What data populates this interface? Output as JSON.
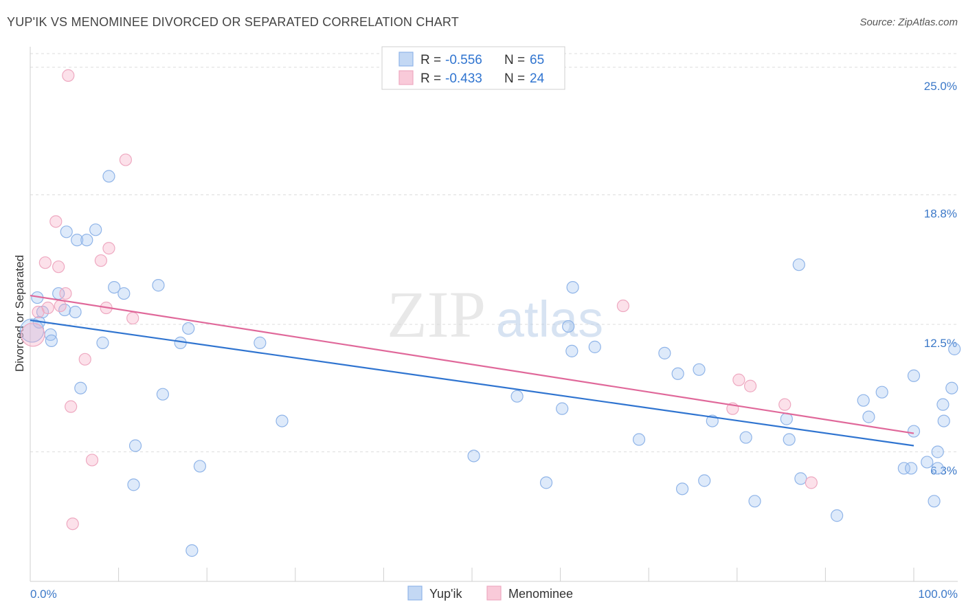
{
  "chart_data": {
    "type": "scatter",
    "title": "YUP'IK VS MENOMINEE DIVORCED OR SEPARATED CORRELATION CHART",
    "source": "Source: ZipAtlas.com",
    "ylabel": "Divorced or Separated",
    "xlabel": "",
    "xlim": [
      0,
      100
    ],
    "ylim": [
      0,
      26
    ],
    "x_tick_labels": [
      "0.0%",
      "100.0%"
    ],
    "y_ticks": [
      6.3,
      12.5,
      18.8,
      25.0
    ],
    "y_tick_labels": [
      "6.3%",
      "12.5%",
      "18.8%",
      "25.0%"
    ],
    "grid": true,
    "watermark": {
      "zip": "ZIP",
      "atlas": "atlas"
    },
    "legend": {
      "rows": [
        {
          "r_label": "R =",
          "r_value": "-0.556",
          "n_label": "N =",
          "n_value": "65"
        },
        {
          "r_label": "R =",
          "r_value": "-0.433",
          "n_label": "N =",
          "n_value": "24"
        }
      ],
      "bottom": [
        "Yup'ik",
        "Menominee"
      ]
    },
    "series": [
      {
        "name": "Yup'ik",
        "color": "#8fb4e8",
        "fill": "rgba(160,195,240,0.35)",
        "line_color": "#2f74d0",
        "trend": [
          [
            0,
            12.7
          ],
          [
            100,
            6.6
          ]
        ],
        "points": [
          [
            0.8,
            13.8
          ],
          [
            1.0,
            12.6
          ],
          [
            1.4,
            13.1
          ],
          [
            2.3,
            12.0
          ],
          [
            2.4,
            11.7
          ],
          [
            3.2,
            14.0
          ],
          [
            3.9,
            13.2
          ],
          [
            4.1,
            17.0
          ],
          [
            5.1,
            13.1
          ],
          [
            5.3,
            16.6
          ],
          [
            5.7,
            9.4
          ],
          [
            6.4,
            16.6
          ],
          [
            7.4,
            17.1
          ],
          [
            8.2,
            11.6
          ],
          [
            8.9,
            19.7
          ],
          [
            9.5,
            14.3
          ],
          [
            10.6,
            14.0
          ],
          [
            11.7,
            4.7
          ],
          [
            11.9,
            6.6
          ],
          [
            14.5,
            14.4
          ],
          [
            15.0,
            9.1
          ],
          [
            17.0,
            11.6
          ],
          [
            17.9,
            12.3
          ],
          [
            18.3,
            1.5
          ],
          [
            19.2,
            5.6
          ],
          [
            26.0,
            11.6
          ],
          [
            28.5,
            7.8
          ],
          [
            50.2,
            6.1
          ],
          [
            55.1,
            9.0
          ],
          [
            58.4,
            4.8
          ],
          [
            60.2,
            8.4
          ],
          [
            60.9,
            12.4
          ],
          [
            61.3,
            11.2
          ],
          [
            61.4,
            14.3
          ],
          [
            63.9,
            11.4
          ],
          [
            68.9,
            6.9
          ],
          [
            71.8,
            11.1
          ],
          [
            73.3,
            10.1
          ],
          [
            73.8,
            4.5
          ],
          [
            75.7,
            10.3
          ],
          [
            76.3,
            4.9
          ],
          [
            77.2,
            7.8
          ],
          [
            81.0,
            7.0
          ],
          [
            82.0,
            3.9
          ],
          [
            85.6,
            7.9
          ],
          [
            85.9,
            6.9
          ],
          [
            87.0,
            15.4
          ],
          [
            87.2,
            5.0
          ],
          [
            91.3,
            3.2
          ],
          [
            94.3,
            8.8
          ],
          [
            94.9,
            8.0
          ],
          [
            96.4,
            9.2
          ],
          [
            98.9,
            5.5
          ],
          [
            99.7,
            5.5
          ],
          [
            100.0,
            7.3
          ],
          [
            100.0,
            10.0
          ],
          [
            101.5,
            5.8
          ],
          [
            102.3,
            3.9
          ],
          [
            102.7,
            5.5
          ],
          [
            102.7,
            6.3
          ],
          [
            103.3,
            8.6
          ],
          [
            103.4,
            7.8
          ],
          [
            104.3,
            9.4
          ],
          [
            104.6,
            11.3
          ],
          [
            0.2,
            12.2
          ]
        ]
      },
      {
        "name": "Menominee",
        "color": "#eea8c0",
        "fill": "rgba(245,170,195,0.35)",
        "line_color": "#e0689a",
        "trend": [
          [
            0,
            13.9
          ],
          [
            100,
            7.2
          ]
        ],
        "points": [
          [
            0.3,
            12.0
          ],
          [
            0.9,
            13.1
          ],
          [
            1.7,
            15.5
          ],
          [
            2.0,
            13.3
          ],
          [
            2.9,
            17.5
          ],
          [
            3.2,
            15.3
          ],
          [
            3.4,
            13.4
          ],
          [
            4.0,
            14.0
          ],
          [
            4.3,
            24.6
          ],
          [
            4.6,
            8.5
          ],
          [
            4.8,
            2.8
          ],
          [
            6.2,
            10.8
          ],
          [
            7.0,
            5.9
          ],
          [
            8.0,
            15.6
          ],
          [
            8.6,
            13.3
          ],
          [
            8.9,
            16.2
          ],
          [
            10.8,
            20.5
          ],
          [
            11.6,
            12.8
          ],
          [
            67.1,
            13.4
          ],
          [
            79.5,
            8.4
          ],
          [
            80.2,
            9.8
          ],
          [
            81.5,
            9.5
          ],
          [
            85.4,
            8.6
          ],
          [
            88.4,
            4.8
          ]
        ]
      }
    ]
  }
}
